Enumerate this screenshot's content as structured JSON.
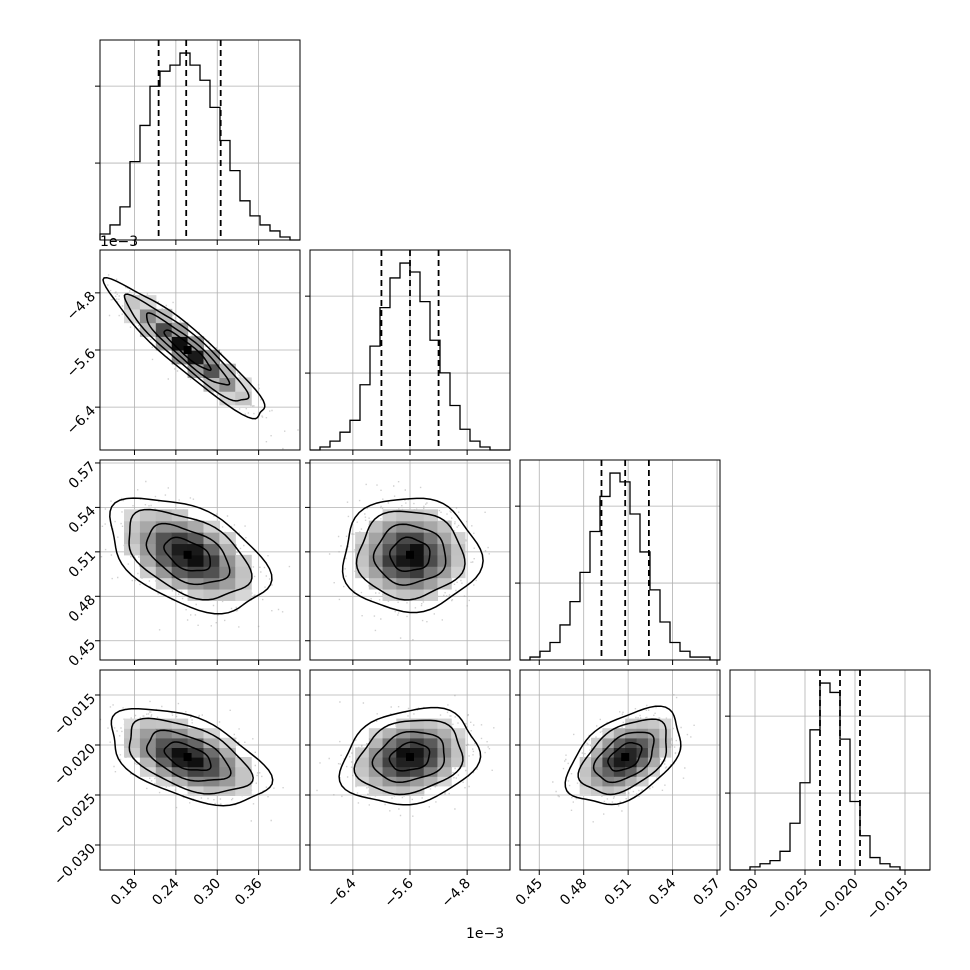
{
  "chart_data": {
    "type": "corner",
    "grid": true,
    "parameters": [
      {
        "index": 0,
        "range": [
          0.13,
          0.42
        ],
        "ticks": [
          0.18,
          0.24,
          0.3,
          0.36
        ],
        "tick_labels": [
          "0.18",
          "0.24",
          "0.30",
          "0.36"
        ],
        "quantiles": [
          0.215,
          0.255,
          0.305
        ],
        "peak": 0.257,
        "sigma": 0.048
      },
      {
        "index": 1,
        "range": [
          -7.0,
          -4.2
        ],
        "ticks": [
          -6.4,
          -5.6,
          -4.8
        ],
        "tick_labels": [
          "−6.4",
          "−5.6",
          "−4.8"
        ],
        "quantiles": [
          -6.0,
          -5.6,
          -5.2
        ],
        "peak": -5.6,
        "sigma": 0.4,
        "scale_label": "1e−3"
      },
      {
        "index": 2,
        "range": [
          0.437,
          0.572
        ],
        "ticks": [
          0.45,
          0.48,
          0.51,
          0.54,
          0.57
        ],
        "tick_labels": [
          "0.45",
          "0.48",
          "0.51",
          "0.54",
          "0.57"
        ],
        "quantiles": [
          0.492,
          0.508,
          0.524
        ],
        "peak": 0.508,
        "sigma": 0.016
      },
      {
        "index": 3,
        "range": [
          -0.0325,
          -0.0125
        ],
        "ticks": [
          -0.03,
          -0.025,
          -0.02,
          -0.015
        ],
        "tick_labels": [
          "−0.030",
          "−0.025",
          "−0.020",
          "−0.015"
        ],
        "quantiles": [
          -0.0235,
          -0.0215,
          -0.0195
        ],
        "peak": -0.0212,
        "sigma": 0.002
      }
    ],
    "histograms": [
      {
        "param": 0,
        "bin_start": 0.13,
        "bin_width": 0.0145,
        "counts": [
          2,
          5,
          11,
          26,
          38,
          51,
          56,
          58,
          62,
          58,
          53,
          44,
          33,
          23,
          13,
          8,
          5,
          3,
          1,
          0
        ]
      },
      {
        "param": 1,
        "bin_start": -7.0,
        "bin_width": 0.14,
        "counts": [
          0,
          1,
          3,
          6,
          10,
          22,
          35,
          48,
          58,
          63,
          60,
          50,
          37,
          26,
          15,
          7,
          3,
          1,
          0,
          0
        ]
      },
      {
        "param": 2,
        "bin_start": 0.437,
        "bin_width": 0.00675,
        "counts": [
          0,
          1,
          3,
          6,
          12,
          20,
          30,
          44,
          56,
          64,
          61,
          50,
          37,
          24,
          13,
          6,
          3,
          1,
          1,
          0
        ]
      },
      {
        "param": 3,
        "bin_start": -0.0325,
        "bin_width": 0.001,
        "counts": [
          0,
          0,
          1,
          2,
          3,
          6,
          15,
          28,
          45,
          60,
          57,
          42,
          22,
          11,
          4,
          2,
          1,
          0,
          0,
          0
        ]
      }
    ],
    "correlations": [
      {
        "x": 0,
        "y": 1,
        "rho": -0.93
      },
      {
        "x": 0,
        "y": 2,
        "rho": -0.45
      },
      {
        "x": 1,
        "y": 2,
        "rho": 0.0
      },
      {
        "x": 0,
        "y": 3,
        "rho": -0.5
      },
      {
        "x": 1,
        "y": 3,
        "rho": 0.2
      },
      {
        "x": 2,
        "y": 3,
        "rho": 0.45
      }
    ],
    "offset_labels": [
      {
        "panel": "row1-col0-y",
        "text": "1e−3"
      },
      {
        "panel": "row3-col1-x",
        "text": "1e−3"
      }
    ]
  }
}
